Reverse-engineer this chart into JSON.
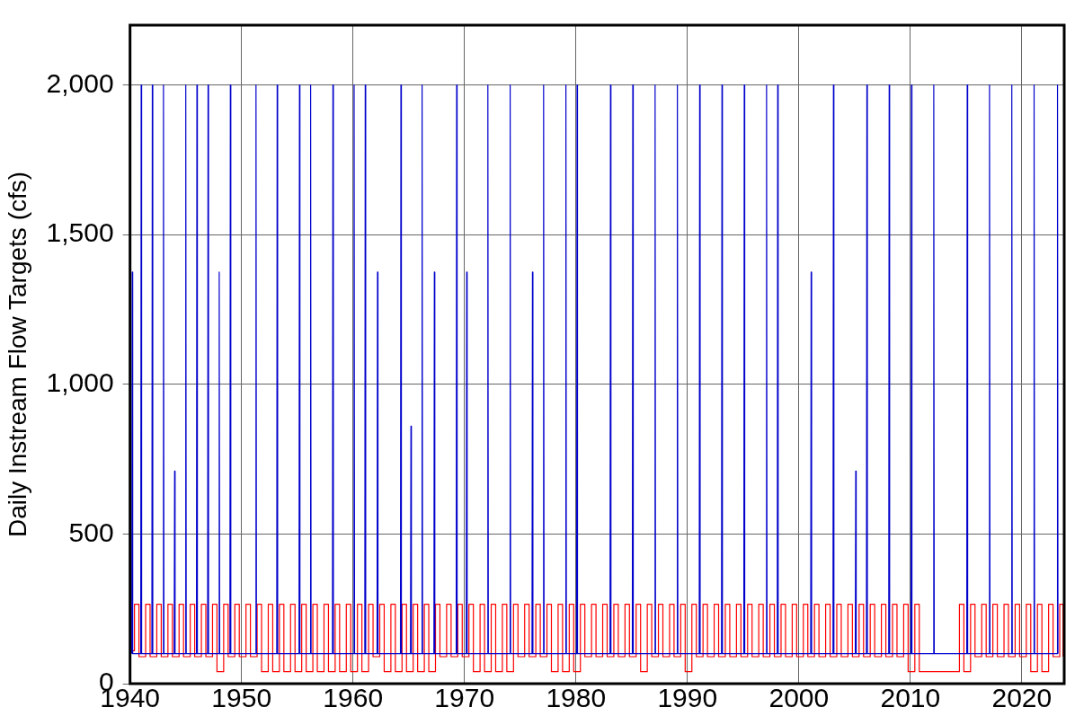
{
  "chart_data": {
    "type": "line",
    "ylabel": "Daily Instream Flow Targets (cfs)",
    "xlim": [
      1940,
      2023.8
    ],
    "xticks": [
      1940,
      1950,
      1960,
      1970,
      1980,
      1990,
      2000,
      2010,
      2020
    ],
    "ylim": [
      0,
      2200
    ],
    "yticks": [
      {
        "value": 0,
        "label": "0"
      },
      {
        "value": 500,
        "label": "500"
      },
      {
        "value": 1000,
        "label": "1,000"
      },
      {
        "value": 1500,
        "label": "1,500"
      },
      {
        "value": 2000,
        "label": "2,000"
      }
    ],
    "grid": true,
    "legend": false,
    "marker": "none",
    "line_style": "solid",
    "series": [
      {
        "type": "line",
        "color": "#0000cc",
        "x": [
          1940.16,
          1940.2,
          1940.24,
          1940.96,
          1941,
          1941.04,
          1941.96,
          1942,
          1942.04,
          1942.96,
          1943,
          1943.04,
          1943.96,
          1944,
          1944.04,
          1944.96,
          1945,
          1945.04,
          1945.96,
          1946,
          1946.04,
          1946.96,
          1947,
          1947.04,
          1947.96,
          1948,
          1948.04,
          1948.96,
          1949,
          1949.04,
          1951.26,
          1951.3,
          1951.34,
          1953.16,
          1953.2,
          1953.24,
          1955.16,
          1955.2,
          1955.24,
          1956.16,
          1956.2,
          1956.24,
          1958.16,
          1958.2,
          1958.24,
          1960.06,
          1960.1,
          1960.14,
          1961.06,
          1961.1,
          1961.14,
          1962.16,
          1962.2,
          1962.24,
          1964.26,
          1964.3,
          1964.34,
          1965.16,
          1965.2,
          1965.24,
          1966.16,
          1966.2,
          1966.24,
          1967.26,
          1967.3,
          1967.34,
          1969.26,
          1969.3,
          1969.34,
          1970.16,
          1970.2,
          1970.24,
          1972.06,
          1972.1,
          1972.14,
          1974.06,
          1974.1,
          1974.14,
          1976.06,
          1976.1,
          1976.14,
          1977.06,
          1977.1,
          1977.14,
          1979.06,
          1979.1,
          1979.14,
          1980.06,
          1980.1,
          1980.14,
          1983.06,
          1983.1,
          1983.14,
          1985.06,
          1985.1,
          1985.14,
          1987.06,
          1987.1,
          1987.14,
          1989.06,
          1989.1,
          1989.14,
          1991.06,
          1991.1,
          1991.14,
          1993.06,
          1993.1,
          1993.14,
          1995.06,
          1995.1,
          1995.14,
          1997.06,
          1997.1,
          1997.14,
          1998.06,
          1998.1,
          1998.14,
          2001.06,
          2001.1,
          2001.14,
          2003.06,
          2003.1,
          2003.14,
          2005.06,
          2005.1,
          2005.14,
          2006.06,
          2006.1,
          2006.14,
          2008.06,
          2008.1,
          2008.14,
          2010.06,
          2010.1,
          2010.14,
          2012.06,
          2012.1,
          2012.14,
          2015.06,
          2015.1,
          2015.14,
          2017.06,
          2017.1,
          2017.14,
          2019.06,
          2019.1,
          2019.14,
          2021.06,
          2021.1,
          2021.14,
          2023.16,
          2023.2,
          2023.24
        ],
        "values": [
          100,
          1375,
          100,
          100,
          2000,
          100,
          100,
          2000,
          100,
          100,
          2000,
          100,
          100,
          710,
          100,
          100,
          2000,
          100,
          100,
          2000,
          100,
          100,
          2000,
          100,
          100,
          1375,
          100,
          100,
          2000,
          100,
          100,
          2000,
          100,
          100,
          2000,
          100,
          100,
          2000,
          100,
          100,
          2000,
          100,
          100,
          2000,
          100,
          100,
          2000,
          100,
          100,
          2000,
          100,
          100,
          1375,
          100,
          100,
          2000,
          100,
          100,
          860,
          100,
          100,
          2000,
          100,
          100,
          1375,
          100,
          100,
          2000,
          100,
          100,
          1375,
          100,
          100,
          2000,
          100,
          100,
          2000,
          100,
          100,
          1375,
          100,
          100,
          2000,
          100,
          100,
          2000,
          100,
          100,
          2000,
          100,
          100,
          2000,
          100,
          100,
          2000,
          100,
          100,
          2000,
          100,
          100,
          2000,
          100,
          100,
          2000,
          100,
          100,
          2000,
          100,
          100,
          2000,
          100,
          100,
          2000,
          100,
          100,
          2000,
          100,
          100,
          1375,
          100,
          100,
          2000,
          100,
          100,
          710,
          100,
          100,
          2000,
          100,
          100,
          2000,
          100,
          100,
          2000,
          100,
          100,
          2000,
          100,
          100,
          2000,
          100,
          100,
          2000,
          100,
          100,
          2000,
          100,
          100,
          2000,
          100,
          100,
          2000,
          100
        ]
      },
      {
        "type": "step",
        "color": "#ff0000",
        "x": [
          1940,
          1940.4,
          1940.8,
          1941.4,
          1941.8,
          1942.4,
          1942.8,
          1943.4,
          1943.8,
          1944.4,
          1944.8,
          1945.4,
          1945.8,
          1946.4,
          1946.8,
          1947.4,
          1947.8,
          1948.4,
          1948.8,
          1949.4,
          1949.8,
          1950.4,
          1950.8,
          1951.4,
          1951.8,
          1952.4,
          1952.8,
          1953.4,
          1953.8,
          1954.4,
          1954.8,
          1955.4,
          1955.8,
          1956.4,
          1956.8,
          1957.4,
          1957.8,
          1958.4,
          1958.8,
          1959.4,
          1959.8,
          1960.4,
          1960.8,
          1961.4,
          1961.8,
          1962.4,
          1962.8,
          1963.4,
          1963.8,
          1964.4,
          1964.8,
          1965.4,
          1965.8,
          1966.4,
          1966.8,
          1967.4,
          1967.8,
          1968.4,
          1968.8,
          1969.4,
          1969.8,
          1970.4,
          1970.8,
          1971.4,
          1971.8,
          1972.4,
          1972.8,
          1973.4,
          1973.8,
          1974.4,
          1974.8,
          1975.4,
          1975.8,
          1976.4,
          1976.8,
          1977.4,
          1977.8,
          1978.4,
          1978.8,
          1979.4,
          1979.8,
          1980.4,
          1980.8,
          1981.4,
          1981.8,
          1982.4,
          1982.8,
          1983.4,
          1983.8,
          1984.4,
          1984.8,
          1985.4,
          1985.8,
          1986.4,
          1986.8,
          1987.4,
          1987.8,
          1988.4,
          1988.8,
          1989.4,
          1989.8,
          1990.4,
          1990.8,
          1991.4,
          1991.8,
          1992.4,
          1992.8,
          1993.4,
          1993.8,
          1994.4,
          1994.8,
          1995.4,
          1995.8,
          1996.4,
          1996.8,
          1997.4,
          1997.8,
          1998.4,
          1998.8,
          1999.4,
          1999.8,
          2000.4,
          2000.8,
          2001.4,
          2001.8,
          2002.4,
          2002.8,
          2003.4,
          2003.8,
          2004.4,
          2004.8,
          2005.4,
          2005.8,
          2006.4,
          2006.8,
          2007.4,
          2007.8,
          2008.4,
          2008.8,
          2009.4,
          2009.8,
          2010.4,
          2010.8,
          2014.4,
          2014.8,
          2015.4,
          2015.8,
          2016.4,
          2016.8,
          2017.4,
          2017.8,
          2018.4,
          2018.8,
          2019.4,
          2019.8,
          2020.4,
          2020.8,
          2021.4,
          2021.8,
          2022.4,
          2022.8,
          2023.4,
          2023.7
        ],
        "values": [
          110,
          265,
          90,
          265,
          90,
          265,
          90,
          265,
          90,
          265,
          90,
          265,
          90,
          265,
          90,
          265,
          40,
          265,
          90,
          265,
          90,
          265,
          90,
          265,
          40,
          265,
          40,
          265,
          40,
          265,
          40,
          265,
          40,
          265,
          40,
          265,
          40,
          265,
          40,
          265,
          40,
          265,
          40,
          265,
          90,
          265,
          40,
          265,
          40,
          265,
          40,
          265,
          40,
          265,
          40,
          265,
          90,
          265,
          90,
          265,
          90,
          265,
          40,
          265,
          40,
          265,
          40,
          265,
          40,
          265,
          90,
          265,
          90,
          265,
          90,
          265,
          40,
          265,
          40,
          265,
          40,
          265,
          90,
          265,
          90,
          265,
          90,
          265,
          90,
          265,
          90,
          265,
          40,
          265,
          90,
          265,
          90,
          265,
          90,
          265,
          40,
          265,
          90,
          265,
          90,
          265,
          90,
          265,
          90,
          265,
          90,
          265,
          90,
          265,
          90,
          265,
          90,
          265,
          90,
          265,
          90,
          265,
          90,
          265,
          90,
          265,
          90,
          265,
          90,
          265,
          90,
          265,
          90,
          265,
          90,
          265,
          90,
          265,
          90,
          265,
          40,
          265,
          40,
          265,
          40,
          265,
          90,
          265,
          90,
          265,
          90,
          265,
          90,
          265,
          90,
          265,
          40,
          265,
          40,
          265,
          90,
          265,
          90
        ]
      }
    ]
  }
}
